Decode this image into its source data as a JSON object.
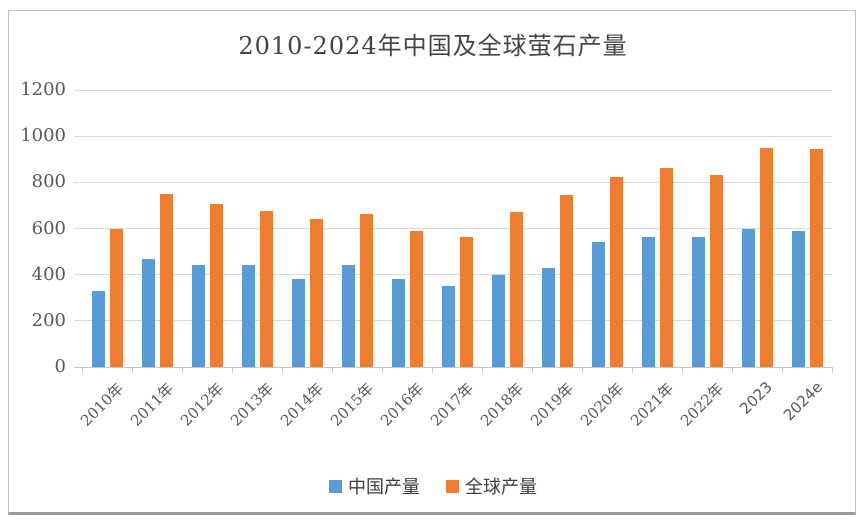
{
  "title": "2010-2024年中国及全球萤石产量",
  "chart_data": {
    "type": "bar",
    "title": "2010-2024年中国及全球萤石产量",
    "categories": [
      "2010年",
      "2011年",
      "2012年",
      "2013年",
      "2014年",
      "2015年",
      "2016年",
      "2017年",
      "2018年",
      "2019年",
      "2020年",
      "2021年",
      "2022年",
      "2023",
      "2024e"
    ],
    "series": [
      {
        "name": "中国产量",
        "color": "#5B9BD5",
        "values": [
          330,
          470,
          440,
          440,
          380,
          440,
          380,
          350,
          400,
          430,
          540,
          565,
          565,
          600,
          590
        ]
      },
      {
        "name": "全球产量",
        "color": "#ED7D31",
        "values": [
          600,
          750,
          705,
          675,
          640,
          665,
          590,
          565,
          670,
          745,
          825,
          860,
          830,
          950,
          945
        ]
      }
    ],
    "ylim": [
      0,
      1200
    ],
    "yticks": [
      0,
      200,
      400,
      600,
      800,
      1000,
      1200
    ],
    "grid": true,
    "legend_position": "bottom",
    "gridline_color": "#D9D9D9",
    "text_color": "#595959"
  },
  "legend": {
    "items": [
      {
        "label": "中国产量",
        "color": "#5B9BD5"
      },
      {
        "label": "全球产量",
        "color": "#ED7D31"
      }
    ]
  }
}
